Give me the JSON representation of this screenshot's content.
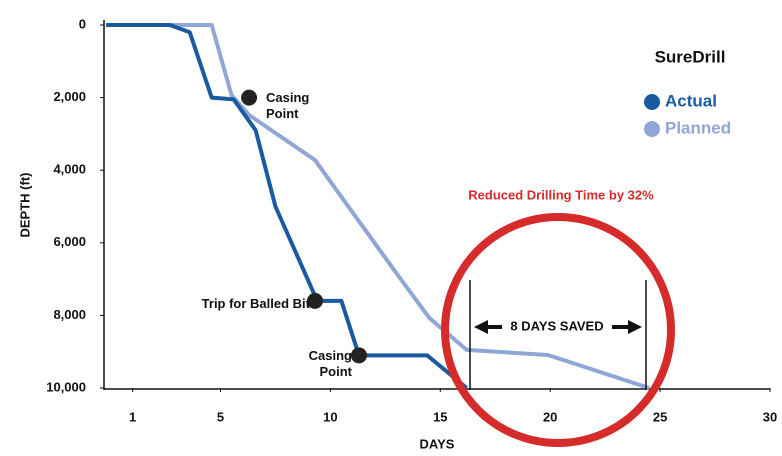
{
  "chart_data": {
    "type": "line",
    "xlabel": "DAYS",
    "ylabel": "DEPTH (ft)",
    "xlim": [
      -0.3,
      30
    ],
    "xticks": [
      1,
      5,
      10,
      15,
      20,
      25,
      30
    ],
    "ylim": [
      0,
      10000
    ],
    "y_inverted": true,
    "yticks": [
      0,
      {
        "value": 2000,
        "label": "2,000"
      },
      {
        "value": 4000,
        "label": "4,000"
      },
      {
        "value": 6000,
        "label": "6,000"
      },
      {
        "value": 8000,
        "label": "8,000"
      },
      {
        "value": 10000,
        "label": "10,000"
      }
    ],
    "legend_title": "SureDrill",
    "legend_position": "upper right",
    "series": [
      {
        "name": "Actual",
        "color": "#1a5aa0",
        "x": [
          -0.2,
          2.7,
          3.6,
          4.6,
          5.6,
          6.6,
          7.5,
          9.4,
          10.5,
          11.3,
          14.4,
          16.2
        ],
        "values": [
          0,
          0,
          200,
          2000,
          2050,
          2900,
          5000,
          7600,
          7600,
          9100,
          9100,
          10000
        ]
      },
      {
        "name": "Planned",
        "color": "#8fa6d6",
        "x": [
          -0.2,
          4.6,
          5.5,
          6.3,
          9.3,
          10.6,
          12.9,
          14.5,
          16.2,
          19.9,
          24.5
        ],
        "values": [
          0,
          0,
          1930,
          2480,
          3720,
          4820,
          6750,
          8070,
          8950,
          9090,
          10000
        ]
      }
    ],
    "annotations": [
      {
        "text": "Casing Point",
        "x": 6.3,
        "y": 2000
      },
      {
        "text": "Trip for Balled Bit",
        "x": 9.3,
        "y": 7600
      },
      {
        "text": "Casing Point",
        "x": 11.3,
        "y": 9100
      }
    ],
    "highlight_text": "Reduced Drilling Time by 32%",
    "savings_text": "8 DAYS SAVED"
  }
}
